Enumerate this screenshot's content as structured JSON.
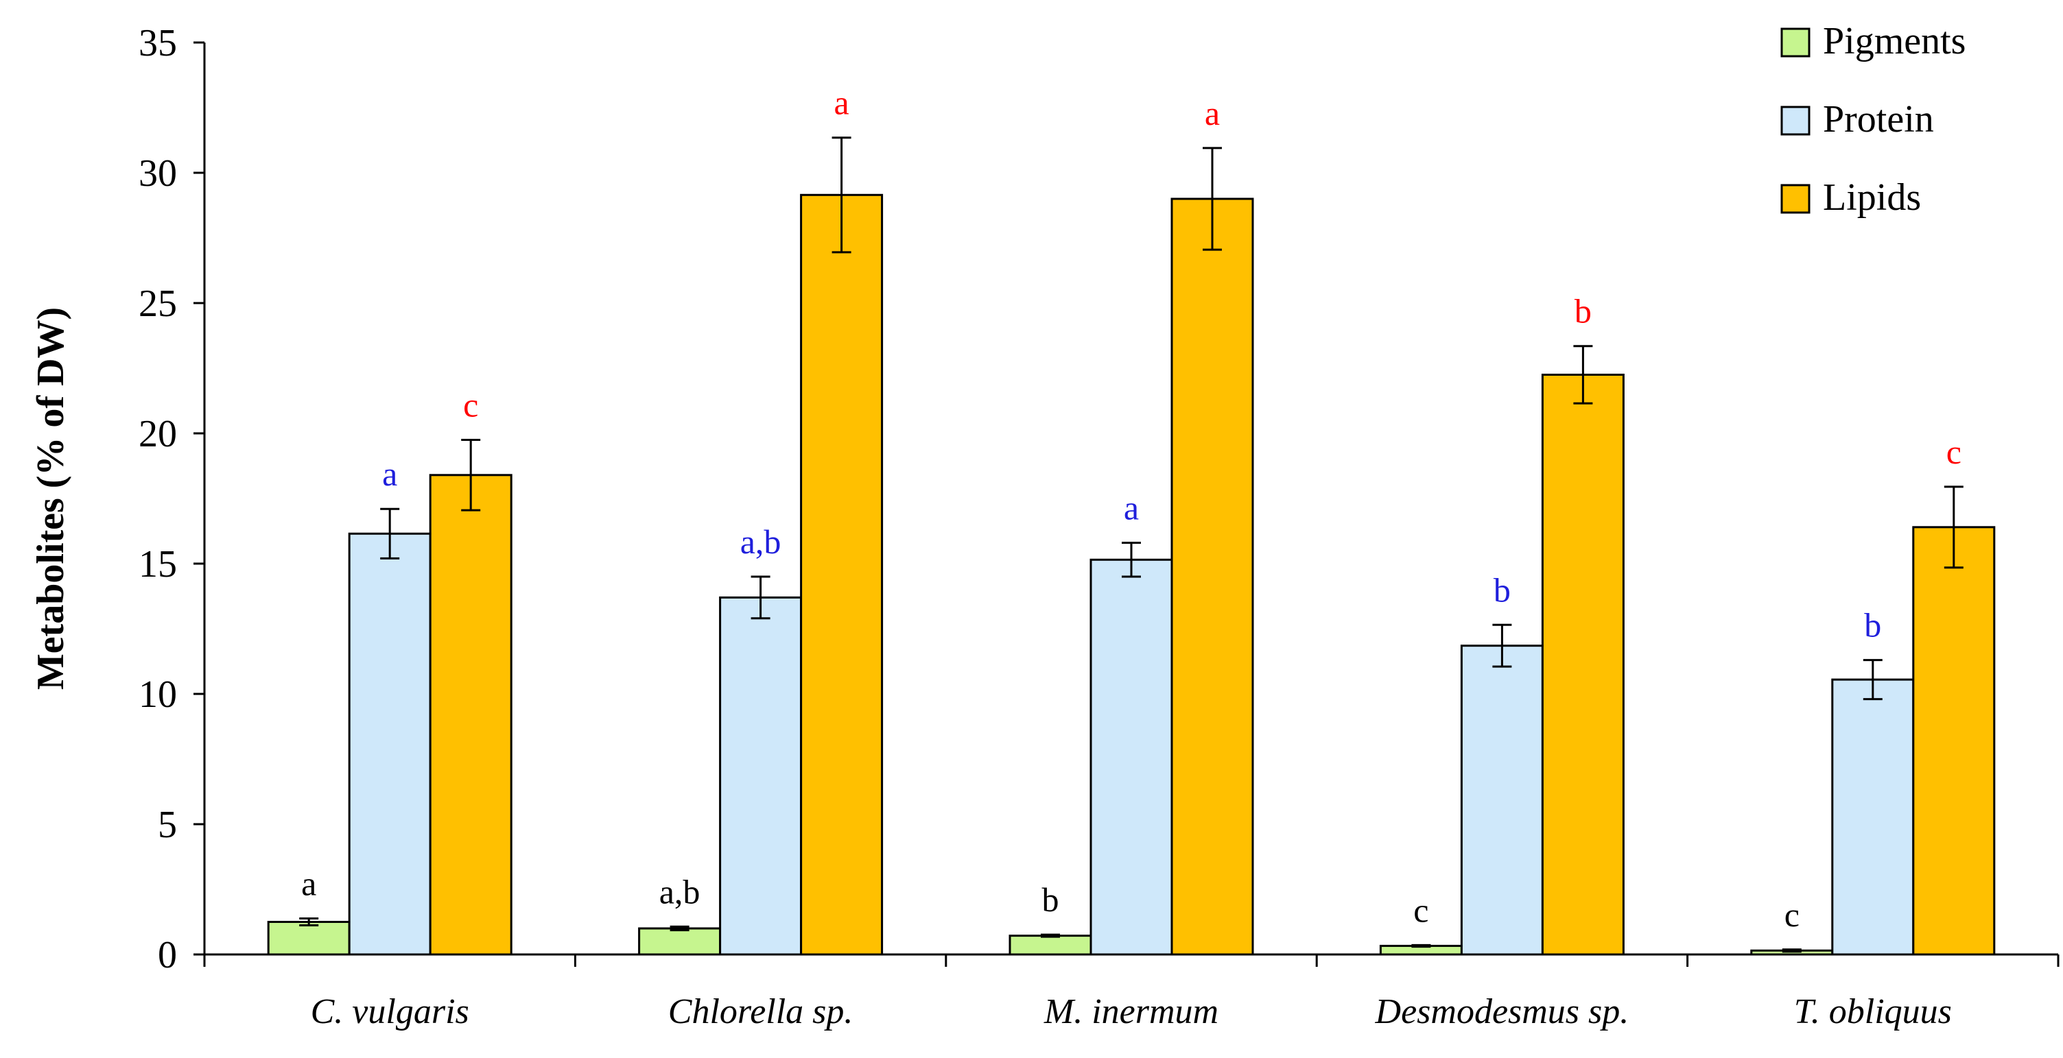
{
  "chart_data": {
    "type": "bar",
    "title": "",
    "xlabel": "",
    "ylabel": "Metabolites (% of DW)",
    "ylim": [
      0,
      35
    ],
    "yticks": [
      0,
      5,
      10,
      15,
      20,
      25,
      30,
      35
    ],
    "categories": [
      "C. vulgaris",
      "Chlorella sp.",
      "M. inermum",
      "Desmodesmus sp.",
      "T. obliquus"
    ],
    "legend_position": "top-right",
    "series": [
      {
        "name": "Pigments",
        "color": "#c6f58f",
        "label_color": "#000000",
        "values": [
          1.25,
          1.0,
          0.72,
          0.33,
          0.15
        ],
        "errors": [
          0.13,
          0.07,
          0.04,
          0.03,
          0.04
        ],
        "letters": [
          "a",
          "a,b",
          "b",
          "c",
          "c"
        ]
      },
      {
        "name": "Protein",
        "color": "#cfe8fa",
        "label_color": "#1f1fdc",
        "values": [
          16.15,
          13.7,
          15.15,
          11.85,
          10.55
        ],
        "errors": [
          0.95,
          0.8,
          0.65,
          0.8,
          0.75
        ],
        "letters": [
          "a",
          "a,b",
          "a",
          "b",
          "b"
        ]
      },
      {
        "name": "Lipids",
        "color": "#ffc000",
        "label_color": "#ff0000",
        "values": [
          18.4,
          29.15,
          29.0,
          22.25,
          16.4
        ],
        "errors": [
          1.35,
          2.2,
          1.95,
          1.1,
          1.55
        ],
        "letters": [
          "c",
          "a",
          "a",
          "b",
          "c"
        ]
      }
    ]
  }
}
